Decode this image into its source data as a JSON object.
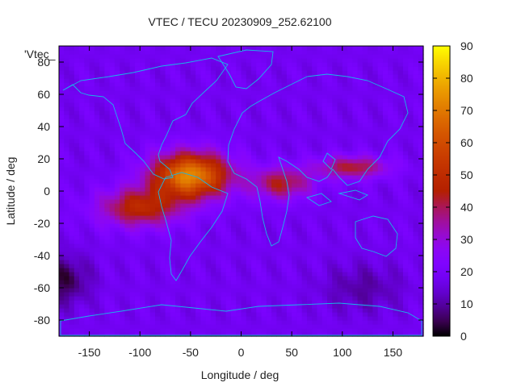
{
  "chart_data": {
    "type": "heatmap",
    "title": "VTEC / TECU 20230909_252.62100",
    "xlabel": "Longitude / deg",
    "ylabel": "Latitude / deg",
    "legend_label": "'Vtec_",
    "xlim": [
      -180,
      180
    ],
    "ylim": [
      -90,
      90
    ],
    "x_ticks": [
      -150,
      -100,
      -50,
      0,
      50,
      100,
      150
    ],
    "y_ticks": [
      -80,
      -60,
      -40,
      -20,
      0,
      20,
      40,
      60,
      80
    ],
    "colorbar": {
      "range": [
        0,
        90
      ],
      "ticks": [
        0,
        10,
        20,
        30,
        40,
        50,
        60,
        70,
        80,
        90
      ],
      "palette": "gnuplot-pm3d-black-purple-red-yellow"
    },
    "grid": {
      "lon_step": 5,
      "lat_step": 2.5
    },
    "field_model": {
      "background": 18,
      "peaks": [
        {
          "lon": -50,
          "lat": 10,
          "amplitude": 55,
          "lon_width": 38,
          "lat_width": 14
        },
        {
          "lon": -100,
          "lat": -10,
          "amplitude": 30,
          "lon_width": 40,
          "lat_width": 12
        },
        {
          "lon": 40,
          "lat": 5,
          "amplitude": 25,
          "lon_width": 30,
          "lat_width": 10
        },
        {
          "lon": 110,
          "lat": 15,
          "amplitude": 25,
          "lon_width": 35,
          "lat_width": 7
        },
        {
          "lon": -175,
          "lat": -55,
          "amplitude": -14,
          "lon_width": 25,
          "lat_width": 15
        },
        {
          "lon": 120,
          "lat": -60,
          "amplitude": -8,
          "lon_width": 40,
          "lat_width": 15
        }
      ]
    }
  }
}
